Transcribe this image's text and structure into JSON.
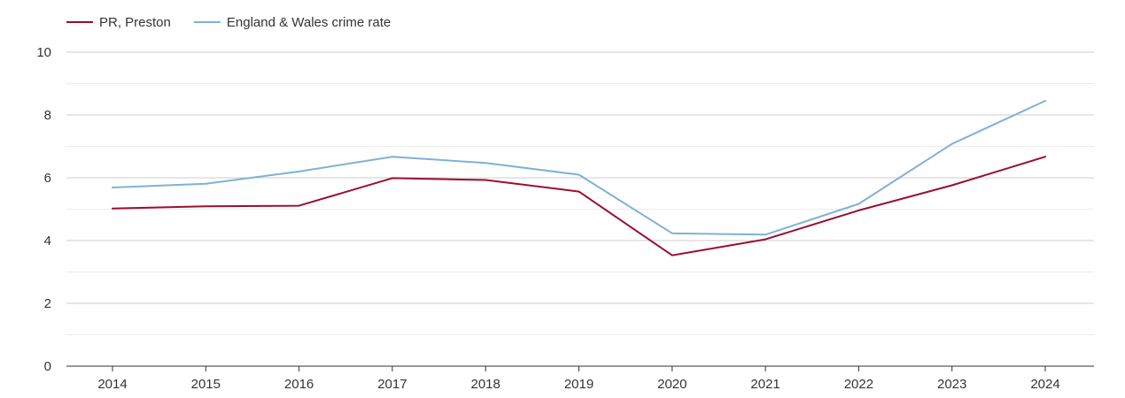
{
  "chart_data": {
    "type": "line",
    "title": "",
    "xlabel": "",
    "ylabel": "",
    "x": [
      "2014",
      "2015",
      "2016",
      "2017",
      "2018",
      "2019",
      "2020",
      "2021",
      "2022",
      "2023",
      "2024"
    ],
    "ylim": [
      0,
      10
    ],
    "yticks": [
      0,
      2,
      4,
      6,
      8,
      10
    ],
    "grid": true,
    "legend_position": "top-left",
    "series": [
      {
        "name": "PR, Preston",
        "color": "#9b0d33",
        "values": [
          5.02,
          5.09,
          5.11,
          5.99,
          5.93,
          5.56,
          3.53,
          4.04,
          4.96,
          5.76,
          6.67
        ]
      },
      {
        "name": "England & Wales crime rate",
        "color": "#7fb2d4",
        "values": [
          5.69,
          5.81,
          6.2,
          6.67,
          6.47,
          6.1,
          4.23,
          4.19,
          5.17,
          7.08,
          8.45
        ]
      }
    ]
  }
}
